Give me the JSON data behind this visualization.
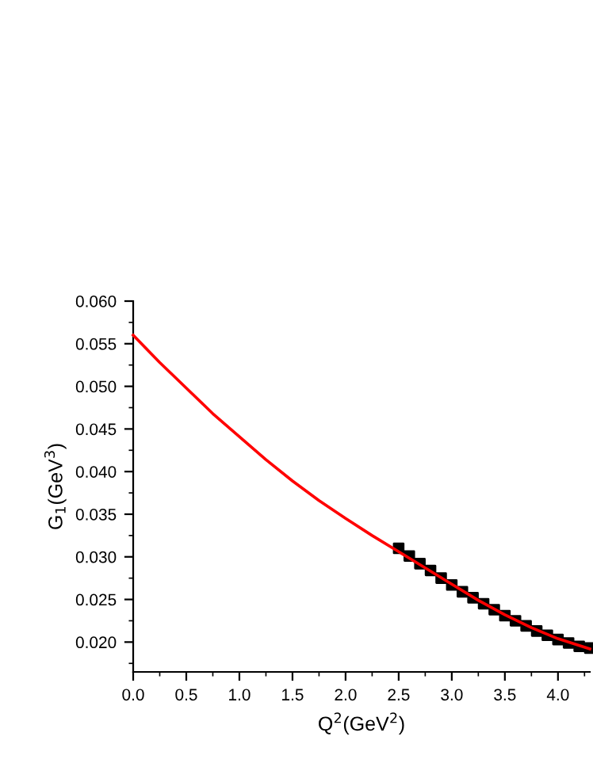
{
  "chart_data": {
    "type": "line",
    "xlabel": "Q$^{2}$(GeV$^{2}$)",
    "ylabel": "G$_{1}$(GeV$^{3}$)",
    "xlim": [
      0,
      4.3
    ],
    "ylim": [
      0.0165,
      0.06
    ],
    "xticks": [
      {
        "value": 0,
        "label": "0.0"
      },
      0.5,
      {
        "value": 1,
        "label": "1.0"
      },
      1.5,
      {
        "value": 2,
        "label": "2.0"
      },
      2.5,
      {
        "value": 3,
        "label": "3.0"
      },
      3.5,
      {
        "value": 4,
        "label": "4.0"
      }
    ],
    "yticks": [
      {
        "value": 0.02,
        "label": "0.020"
      },
      0.025,
      {
        "value": 0.03,
        "label": "0.030"
      },
      0.035,
      {
        "value": 0.04,
        "label": "0.040"
      },
      0.045,
      {
        "value": 0.05,
        "label": "0.050"
      },
      0.055,
      {
        "value": 0.06,
        "label": "0.060"
      }
    ],
    "grid": false,
    "legend": false,
    "series": [
      {
        "color": "#ff0000",
        "marker": "none",
        "line_style": "solid",
        "x": [
          0,
          0.25,
          0.5,
          0.75,
          1.0,
          1.25,
          1.5,
          1.75,
          2.0,
          2.25,
          2.5,
          2.75,
          3.0,
          3.25,
          3.5,
          3.75,
          4.0,
          4.3
        ],
        "values": [
          0.056,
          0.0528,
          0.0498,
          0.0468,
          0.0441,
          0.0414,
          0.0389,
          0.0366,
          0.0345,
          0.0325,
          0.0306,
          0.0287,
          0.0268,
          0.0249,
          0.0232,
          0.0217,
          0.0204,
          0.0192
        ]
      },
      {
        "type": "scatter",
        "color": "#000000",
        "marker": "square",
        "x": [
          2.5,
          2.6,
          2.7,
          2.8,
          2.9,
          3.0,
          3.1,
          3.2,
          3.3,
          3.4,
          3.5,
          3.6,
          3.7,
          3.8,
          3.9,
          4.0,
          4.1,
          4.2,
          4.3
        ],
        "values": [
          0.031,
          0.0301,
          0.0292,
          0.0284,
          0.0275,
          0.0267,
          0.0259,
          0.0252,
          0.0245,
          0.0238,
          0.0231,
          0.0225,
          0.0219,
          0.0213,
          0.0208,
          0.0203,
          0.0199,
          0.0195,
          0.0193
        ]
      }
    ]
  }
}
